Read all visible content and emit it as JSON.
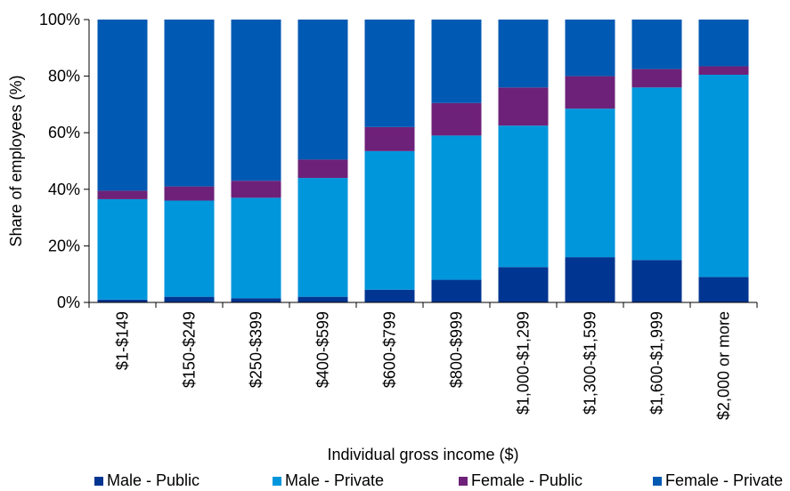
{
  "chart_data": {
    "type": "bar",
    "stacked": true,
    "categories": [
      "$1-$149",
      "$150-$249",
      "$250-$399",
      "$400-$599",
      "$600-$799",
      "$800-$999",
      "$1,000-$1,299",
      "$1,300-$1,599",
      "$1,600-$1,999",
      "$2,000 or more"
    ],
    "series": [
      {
        "name": "Male - Public",
        "color": "#003591",
        "values": [
          1,
          2,
          1.5,
          2,
          4.5,
          8,
          12.5,
          16,
          15,
          9
        ]
      },
      {
        "name": "Male - Private",
        "color": "#0096dc",
        "values": [
          35.5,
          34,
          35.5,
          42,
          49,
          51,
          50,
          52.5,
          61,
          71.5
        ]
      },
      {
        "name": "Female - Public",
        "color": "#6e2178",
        "values": [
          3,
          5,
          6,
          6.5,
          8.5,
          11.5,
          13.5,
          11.5,
          6.5,
          3
        ]
      },
      {
        "name": "Female - Private",
        "color": "#0059b3",
        "values": [
          60.5,
          59,
          57,
          49.5,
          38,
          29.5,
          24,
          20,
          17.5,
          16.5
        ]
      }
    ],
    "xlabel": "Individual gross income ($)",
    "ylabel": "Share of employees (%)",
    "ylim": [
      0,
      100
    ],
    "yticks": [
      "0%",
      "20%",
      "40%",
      "60%",
      "80%",
      "100%"
    ],
    "grid": false,
    "legend_position": "bottom"
  }
}
